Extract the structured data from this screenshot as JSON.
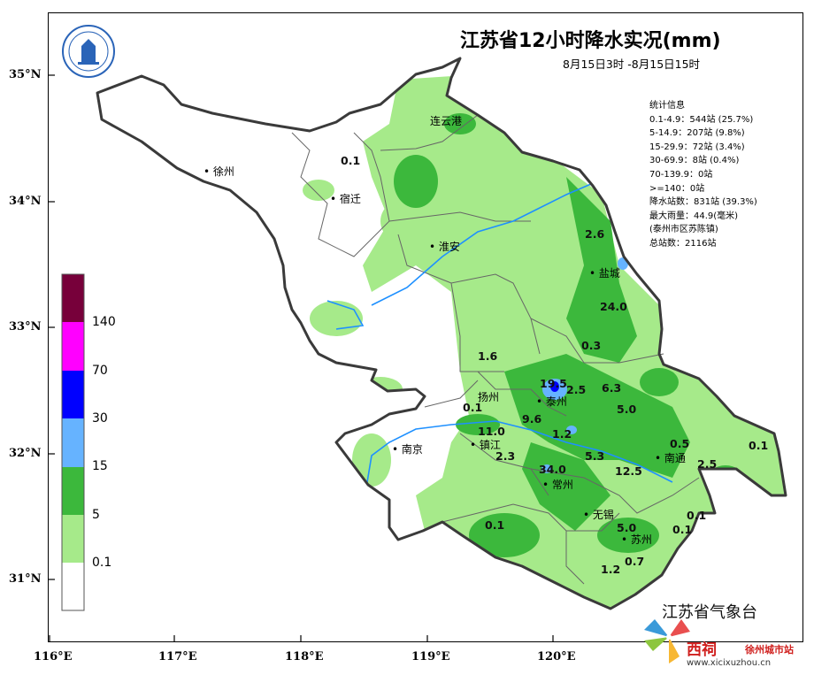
{
  "header": {
    "title": "江苏省12小时降水实况(mm)",
    "subtitle": "8月15日3时 -8月15日15时"
  },
  "stats": {
    "heading": "统计信息",
    "lines": [
      "0.1-4.9：544站 (25.7%)",
      "5-14.9：207站 (9.8%)",
      "15-29.9：72站 (3.4%)",
      "30-69.9：8站 (0.4%)",
      "70-139.9：0站",
      ">=140：0站",
      "降水站数：831站 (39.3%)",
      "最大雨量：44.9(毫米)",
      "(泰州市区苏陈镇)",
      "总站数：2116站"
    ]
  },
  "axes": {
    "lat_labels": [
      "35°N",
      "34°N",
      "33°N",
      "32°N",
      "31°N"
    ],
    "lon_labels": [
      "116°E",
      "117°E",
      "118°E",
      "119°E",
      "120°E"
    ]
  },
  "legend": {
    "labels": [
      "140",
      "70",
      "30",
      "15",
      "5",
      "0.1"
    ],
    "colors": [
      "#77003a",
      "#ff00ff",
      "#0000ff",
      "#66b3ff",
      "#3cb83c",
      "#a6ea8a",
      "#ffffff"
    ]
  },
  "cities": [
    {
      "name": "徐州"
    },
    {
      "name": "连云港"
    },
    {
      "name": "宿迁"
    },
    {
      "name": "淮安"
    },
    {
      "name": "盐城"
    },
    {
      "name": "扬州"
    },
    {
      "name": "泰州"
    },
    {
      "name": "南京"
    },
    {
      "name": "镇江"
    },
    {
      "name": "常州"
    },
    {
      "name": "南通"
    },
    {
      "name": "无锡"
    },
    {
      "name": "苏州"
    }
  ],
  "values": [
    "0.1",
    "2.6",
    "24.0",
    "0.3",
    "1.6",
    "19.5",
    "2.5",
    "6.3",
    "0.1",
    "5.0",
    "9.6",
    "11.0",
    "1.2",
    "0.5",
    "0.1",
    "2.3",
    "34.0",
    "5.3",
    "12.5",
    "2.5",
    "0.1",
    "0.1",
    "5.0",
    "0.1",
    "0.7",
    "1.2"
  ],
  "logo": {
    "text": "江 苏 省 气 象 台"
  },
  "footer": {
    "agency": "江苏省气象台",
    "watermark_name": "西祠",
    "watermark_sub": "徐州城市站",
    "watermark_url": "www.xicixuzhou.cn"
  }
}
